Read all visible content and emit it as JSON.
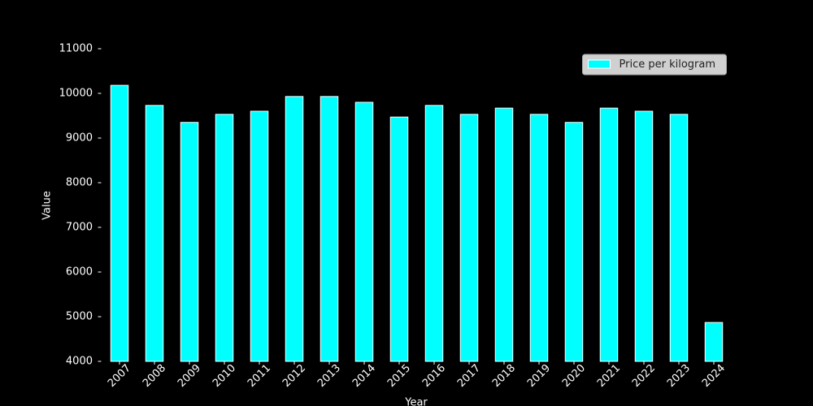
{
  "chart_data": {
    "type": "bar",
    "x_label": "Year",
    "y_label": "Value",
    "categories": [
      "2007",
      "2008",
      "2009",
      "2010",
      "2011",
      "2012",
      "2013",
      "2014",
      "2015",
      "2016",
      "2017",
      "2018",
      "2019",
      "2020",
      "2021",
      "2022",
      "2023",
      "2024"
    ],
    "series": [
      {
        "name": "Price per kilogram",
        "color": "#00ffff",
        "values": [
          10180,
          9730,
          9350,
          9530,
          9600,
          9930,
          9930,
          9800,
          9470,
          9730,
          9530,
          9670,
          9530,
          9350,
          9670,
          9600,
          9530,
          4870
        ]
      }
    ],
    "ylim": [
      4000,
      11000
    ],
    "yticks": [
      4000,
      5000,
      6000,
      7000,
      8000,
      9000,
      10000,
      11000
    ],
    "legend": "upper right"
  }
}
